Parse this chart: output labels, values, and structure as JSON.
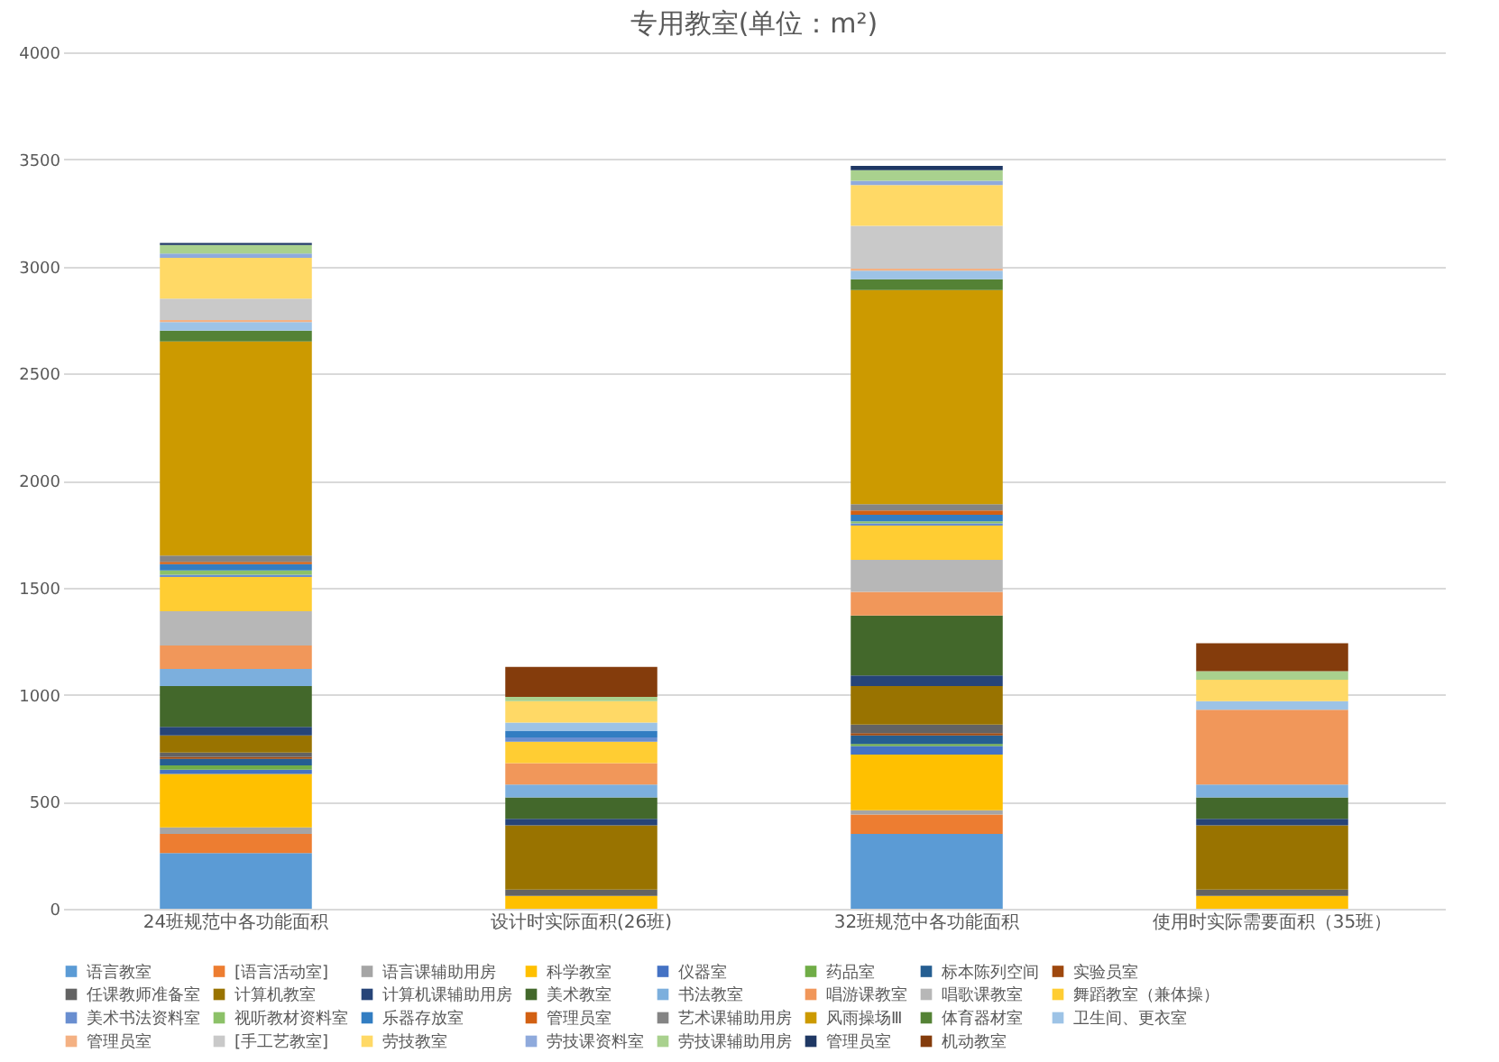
{
  "chart_data": {
    "type": "bar",
    "stacked": true,
    "title": "专用教室(单位：m²)",
    "categories": [
      "24班规范中各功能面积",
      "设计时实际面积(26班)",
      "32班规范中各功能面积",
      "使用时实际需要面积（35班）"
    ],
    "ylim": [
      0,
      4000
    ],
    "yticks": [
      0,
      500,
      1000,
      1500,
      2000,
      2500,
      3000,
      3500,
      4000
    ],
    "grid": "y",
    "legend": "bottom",
    "series": [
      {
        "name": "语言教室",
        "color": "#5b9bd5",
        "values": [
          260,
          null,
          350,
          null
        ]
      },
      {
        "name": "[语言活动室]",
        "color": "#ed7d31",
        "values": [
          90,
          null,
          90,
          null
        ]
      },
      {
        "name": "语言课辅助用房",
        "color": "#a5a5a5",
        "values": [
          30,
          null,
          20,
          null
        ]
      },
      {
        "name": "科学教室",
        "color": "#ffc000",
        "values": [
          250,
          60,
          260,
          60
        ]
      },
      {
        "name": "仪器室",
        "color": "#4472c4",
        "values": [
          20,
          null,
          40,
          null
        ]
      },
      {
        "name": "药品室",
        "color": "#70ad47",
        "values": [
          20,
          null,
          10,
          null
        ]
      },
      {
        "name": "标本陈列空间",
        "color": "#255e91",
        "values": [
          30,
          null,
          40,
          null
        ]
      },
      {
        "name": "实验员室",
        "color": "#9e480e",
        "values": [
          10,
          null,
          10,
          null
        ]
      },
      {
        "name": "任课教师准备室",
        "color": "#636363",
        "values": [
          20,
          30,
          40,
          30
        ]
      },
      {
        "name": "计算机教室",
        "color": "#997300",
        "values": [
          80,
          300,
          180,
          300
        ]
      },
      {
        "name": "计算机课辅助用房",
        "color": "#264478",
        "values": [
          40,
          30,
          50,
          30
        ]
      },
      {
        "name": "美术教室",
        "color": "#43682b",
        "values": [
          190,
          100,
          280,
          100
        ]
      },
      {
        "name": "书法教室",
        "color": "#7cafdd",
        "values": [
          80,
          60,
          null,
          60
        ]
      },
      {
        "name": "唱游课教室",
        "color": "#f1975a",
        "values": [
          110,
          100,
          110,
          350
        ]
      },
      {
        "name": "唱歌课教室",
        "color": "#b7b7b7",
        "values": [
          160,
          null,
          150,
          null
        ]
      },
      {
        "name": "舞蹈教室（兼体操）",
        "color": "#ffcd33",
        "values": [
          160,
          100,
          160,
          null
        ]
      },
      {
        "name": "美术书法资料室",
        "color": "#698ed0",
        "values": [
          10,
          20,
          10,
          null
        ]
      },
      {
        "name": "视听教材资料室",
        "color": "#8cc168",
        "values": [
          20,
          null,
          10,
          null
        ]
      },
      {
        "name": "乐器存放室",
        "color": "#327dc2",
        "values": [
          30,
          30,
          30,
          null
        ]
      },
      {
        "name": "管理员室",
        "color": "#d26012",
        "values": [
          10,
          null,
          20,
          null
        ]
      },
      {
        "name": "艺术课辅助用房",
        "color": "#848484",
        "values": [
          30,
          null,
          30,
          null
        ]
      },
      {
        "name": "风雨操场Ⅲ",
        "color": "#cc9a00",
        "values": [
          1000,
          null,
          1000,
          null
        ]
      },
      {
        "name": "体育器材室",
        "color": "#548235",
        "values": [
          50,
          null,
          50,
          null
        ]
      },
      {
        "name": "卫生间、更衣室",
        "color": "#9dc3e6",
        "values": [
          40,
          40,
          40,
          40
        ]
      },
      {
        "name": "管理员室",
        "color": "#f4b183",
        "values": [
          10,
          null,
          10,
          null
        ]
      },
      {
        "name": "[手工艺教室]",
        "color": "#c9c9c9",
        "values": [
          100,
          null,
          200,
          null
        ]
      },
      {
        "name": "劳技教室",
        "color": "#ffd966",
        "values": [
          190,
          100,
          190,
          100
        ]
      },
      {
        "name": "劳技课资料室",
        "color": "#8faadc",
        "values": [
          20,
          null,
          20,
          null
        ]
      },
      {
        "name": "劳技课辅助用房",
        "color": "#a9d18e",
        "values": [
          40,
          20,
          50,
          40
        ]
      },
      {
        "name": "管理员室",
        "color": "#1f3864",
        "values": [
          10,
          null,
          20,
          null
        ]
      },
      {
        "name": "机动教室",
        "color": "#843c0c",
        "values": [
          null,
          140,
          null,
          130
        ]
      }
    ]
  }
}
